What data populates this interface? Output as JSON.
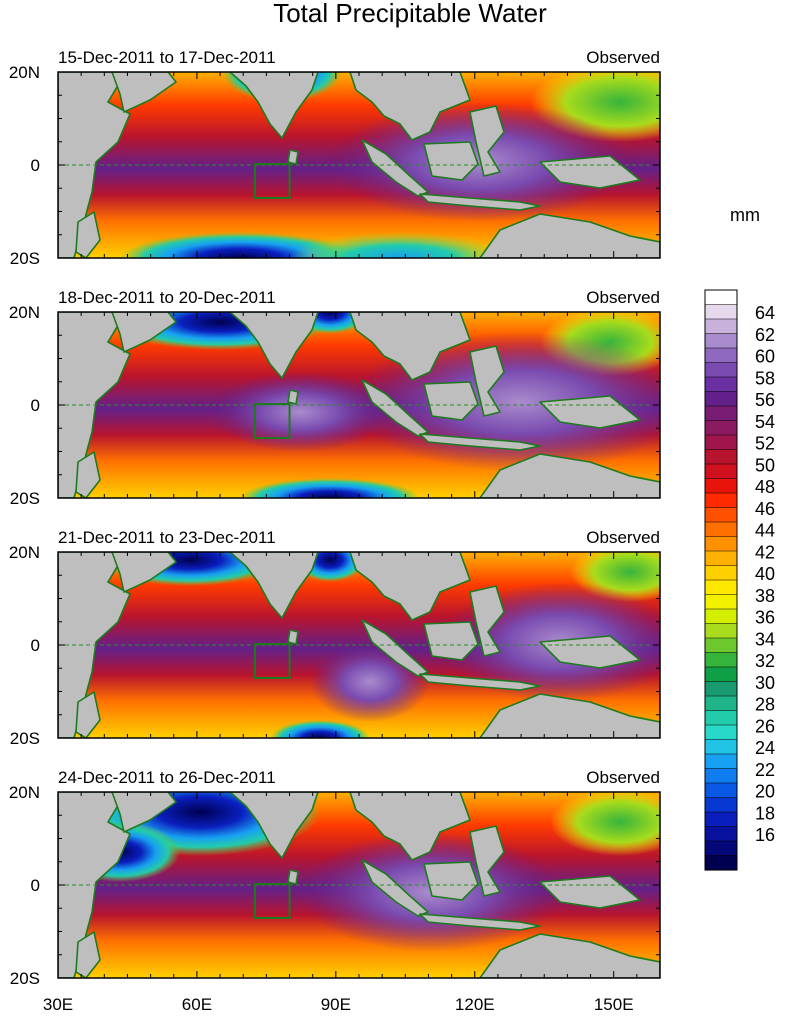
{
  "title": "Total Precipitable Water",
  "units": "mm",
  "panels": [
    {
      "date_range": "15-Dec-2011 to 17-Dec-2011",
      "status": "Observed"
    },
    {
      "date_range": "18-Dec-2011 to 20-Dec-2011",
      "status": "Observed"
    },
    {
      "date_range": "21-Dec-2011 to 23-Dec-2011",
      "status": "Observed"
    },
    {
      "date_range": "24-Dec-2011 to 26-Dec-2011",
      "status": "Observed"
    }
  ],
  "y_labels": [
    "20N",
    "0",
    "20S"
  ],
  "x_labels": [
    "30E",
    "60E",
    "90E",
    "120E",
    "150E"
  ],
  "colorbar": {
    "labels": [
      "64",
      "62",
      "60",
      "58",
      "56",
      "54",
      "52",
      "50",
      "48",
      "46",
      "44",
      "42",
      "40",
      "38",
      "36",
      "34",
      "32",
      "30",
      "28",
      "26",
      "24",
      "22",
      "20",
      "18",
      "16"
    ],
    "colors": [
      "#ffffff",
      "#e6d9ec",
      "#c8b2dc",
      "#a98ccd",
      "#8f68bf",
      "#7a4bb0",
      "#6a2fa0",
      "#63208a",
      "#781c74",
      "#8c1a60",
      "#a0164c",
      "#b8142e",
      "#d0101c",
      "#e8140c",
      "#ff2a00",
      "#ff5000",
      "#ff7000",
      "#ff9000",
      "#ffb000",
      "#ffd000",
      "#ffe800",
      "#f2f200",
      "#d4ee00",
      "#a8dc1c",
      "#6cc82c",
      "#36b43c",
      "#109e46",
      "#1a9a70",
      "#20b48a",
      "#22ccaa",
      "#28d8c8",
      "#22c4e6",
      "#18a0f2",
      "#0f7cf0",
      "#0a58e6",
      "#0838d2",
      "#0a1ebe",
      "#08109e",
      "#050878",
      "#000050"
    ]
  },
  "colors": {
    "land": "#bebebe",
    "coast": "#1e7a1e",
    "box": "#1e7a1e",
    "equator": "#2e8b2e"
  }
}
